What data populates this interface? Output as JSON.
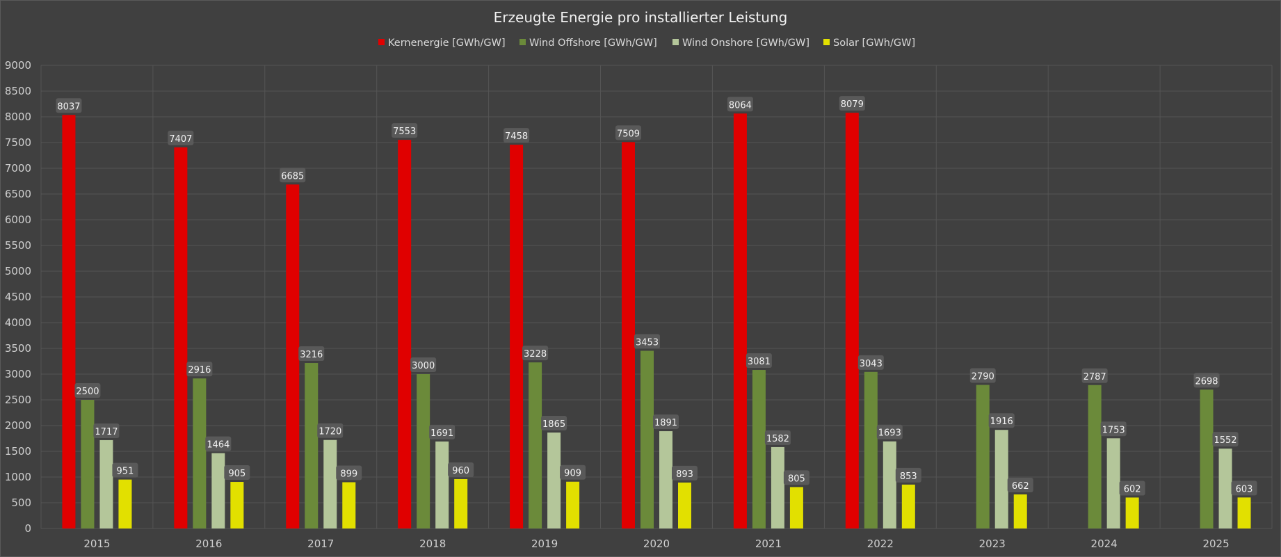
{
  "chart_data": {
    "type": "bar",
    "title": "Erzeugte Energie pro installierter Leistung",
    "xlabel": "",
    "ylabel": "",
    "ylim": [
      0,
      9000
    ],
    "ytick_step": 500,
    "grid": true,
    "legend_position": "top-center",
    "categories": [
      "2015",
      "2016",
      "2017",
      "2018",
      "2019",
      "2020",
      "2021",
      "2022",
      "2023",
      "2024",
      "2025"
    ],
    "series": [
      {
        "name": "Kernenergie [GWh/GW]",
        "color": "#e00000",
        "values": [
          8037,
          7407,
          6685,
          7553,
          7458,
          7509,
          8064,
          8079,
          null,
          null,
          null
        ]
      },
      {
        "name": "Wind Offshore [GWh/GW]",
        "color": "#6b8a3a",
        "values": [
          2500,
          2916,
          3216,
          3000,
          3228,
          3453,
          3081,
          3043,
          2790,
          2787,
          2698
        ]
      },
      {
        "name": "Wind Onshore [GWh/GW]",
        "color": "#b4c69a",
        "values": [
          1717,
          1464,
          1720,
          1691,
          1865,
          1891,
          1582,
          1693,
          1916,
          1753,
          1552
        ]
      },
      {
        "name": "Solar [GWh/GW]",
        "color": "#e2e000",
        "values": [
          951,
          905,
          899,
          960,
          909,
          893,
          805,
          853,
          662,
          602,
          603
        ]
      }
    ]
  }
}
